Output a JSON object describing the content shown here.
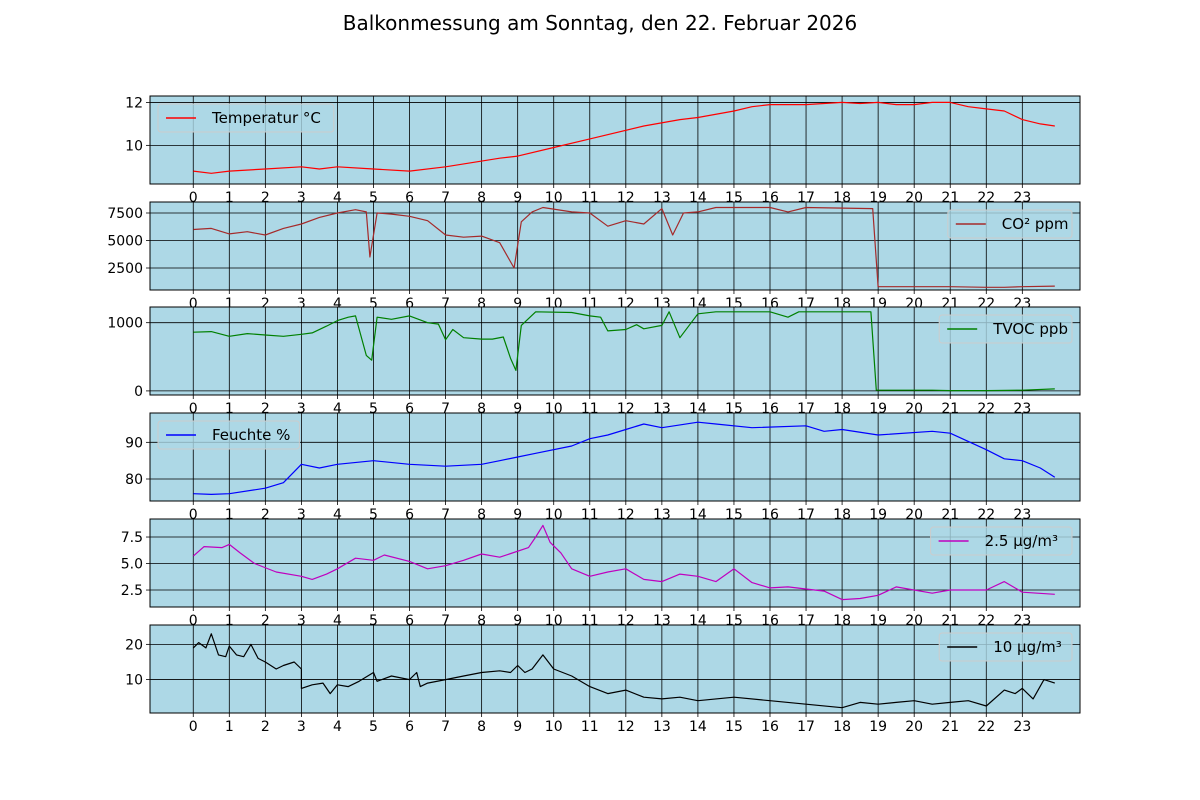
{
  "title": "Balkonmessung am Sonntag, den 22. Februar 2026",
  "colors": {
    "plot_background": "#add8e6",
    "grid": "#000000",
    "temperature": "#ff0000",
    "co2": "#a52a2a",
    "tvoc": "#008000",
    "humidity": "#0000ff",
    "pm25": "#bf00bf",
    "pm10": "#000000"
  },
  "chart_data": [
    {
      "type": "line",
      "series": [
        {
          "name": "Temperatur °C",
          "values": [
            8.8,
            8.7,
            8.8,
            8.9,
            9.0,
            8.9,
            9.0,
            8.9,
            8.8,
            9.0,
            9.4,
            9.5,
            9.9,
            10.3,
            10.9,
            11.2,
            11.3,
            11.6,
            11.8,
            11.9,
            11.9,
            12.0,
            11.95,
            12.0,
            11.9,
            11.9,
            12.0,
            12.0,
            11.8,
            11.7,
            11.6,
            11.2,
            11.0,
            10.9
          ]
        }
      ],
      "x": [
        0,
        0.5,
        1,
        2,
        3,
        3.5,
        4,
        5,
        6,
        7,
        8.5,
        9,
        10,
        11,
        12.5,
        13.5,
        14,
        15,
        15.5,
        16,
        17,
        18,
        18.5,
        19,
        19.5,
        20,
        20.5,
        21,
        21.5,
        22,
        22.5,
        23,
        23.5,
        23.9
      ],
      "legend": "upper left",
      "ylim": [
        8.2,
        12.3
      ],
      "yticks": [
        10,
        12
      ],
      "ytick_labels": [
        "10",
        "12"
      ]
    },
    {
      "type": "line",
      "series": [
        {
          "name": "CO² ppm",
          "values": [
            6000,
            6100,
            5600,
            5800,
            5500,
            6100,
            6500,
            7100,
            7500,
            7800,
            7600,
            3500,
            7500,
            7400,
            7200,
            6800,
            5500,
            5300,
            5400,
            4800,
            2500,
            6700,
            7600,
            8000,
            7600,
            7500,
            6300,
            6800,
            6500,
            7900,
            5500,
            7500,
            7600,
            8000,
            8000,
            7600,
            8000,
            7900,
            800,
            800,
            800,
            750,
            750,
            800,
            850
          ]
        }
      ],
      "x": [
        0,
        0.5,
        1,
        1.5,
        2,
        2.5,
        3,
        3.5,
        4,
        4.5,
        4.8,
        4.9,
        5.1,
        5.5,
        6,
        6.5,
        7,
        7.5,
        8,
        8.5,
        8.9,
        9.1,
        9.4,
        9.7,
        10.5,
        11,
        11.5,
        12,
        12.5,
        13,
        13.3,
        13.6,
        14,
        14.5,
        16,
        16.5,
        17,
        18.85,
        19.0,
        20,
        21,
        22,
        22.5,
        23,
        23.9
      ],
      "legend": "upper right",
      "ylim": [
        500,
        8500
      ],
      "yticks": [
        2500,
        5000,
        7500
      ],
      "ytick_labels": [
        "2500",
        "5000",
        "7500"
      ]
    },
    {
      "type": "line",
      "series": [
        {
          "name": "TVOC ppb",
          "values": [
            860,
            870,
            800,
            840,
            820,
            800,
            830,
            850,
            950,
            1030,
            1080,
            1100,
            520,
            450,
            1080,
            1050,
            1100,
            1000,
            980,
            750,
            900,
            780,
            760,
            760,
            790,
            480,
            300,
            960,
            1160,
            1150,
            1100,
            1080,
            880,
            900,
            970,
            910,
            960,
            1160,
            780,
            1130,
            1160,
            1160,
            1080,
            1160,
            1160,
            10,
            10,
            10,
            5,
            5,
            10,
            30
          ]
        }
      ],
      "x": [
        0,
        0.5,
        1,
        1.5,
        2,
        2.5,
        3,
        3.3,
        3.7,
        4,
        4.3,
        4.5,
        4.8,
        4.95,
        5.1,
        5.5,
        6,
        6.5,
        6.8,
        7,
        7.2,
        7.5,
        8,
        8.3,
        8.6,
        8.8,
        8.95,
        9.1,
        9.5,
        10.5,
        11,
        11.3,
        11.5,
        12,
        12.3,
        12.5,
        13,
        13.2,
        13.5,
        14,
        14.5,
        16,
        16.5,
        16.8,
        18.8,
        18.95,
        19.5,
        20.5,
        21,
        22,
        23,
        23.9
      ],
      "legend": "upper right",
      "ylim": [
        -60,
        1230
      ],
      "yticks": [
        0,
        1000
      ],
      "ytick_labels": [
        "0",
        "1000"
      ]
    },
    {
      "type": "line",
      "series": [
        {
          "name": "Feuchte %",
          "values": [
            76,
            75.8,
            76,
            77.5,
            79,
            82,
            84,
            83,
            84,
            85,
            84,
            83.5,
            84,
            85,
            86,
            87,
            89,
            91,
            92,
            93.5,
            95,
            94,
            95.5,
            95,
            94,
            94.5,
            93,
            93.5,
            92,
            93,
            92.5,
            88,
            85.5,
            85,
            83,
            80.5
          ]
        }
      ],
      "x": [
        0,
        0.5,
        1,
        2,
        2.5,
        2.8,
        3,
        3.5,
        4,
        5,
        6,
        7,
        8,
        8.5,
        9,
        9.5,
        10.5,
        11,
        11.5,
        12,
        12.5,
        13,
        14,
        14.5,
        15.5,
        17,
        17.5,
        18,
        19,
        20.5,
        21,
        22,
        22.5,
        23,
        23.5,
        23.9
      ],
      "legend": "upper left",
      "ylim": [
        74,
        98
      ],
      "yticks": [
        80,
        90
      ],
      "ytick_labels": [
        "80",
        "90"
      ]
    },
    {
      "type": "line",
      "series": [
        {
          "name": "2.5 µg/m³",
          "values": [
            5.7,
            6.6,
            6.5,
            6.8,
            6,
            5,
            4.2,
            3.8,
            3.5,
            4,
            4.5,
            5.5,
            5.3,
            5.8,
            5.2,
            4.5,
            4.8,
            5.3,
            5.9,
            5.6,
            6.5,
            7.5,
            8.6,
            7,
            6,
            4.5,
            3.8,
            4.2,
            4.5,
            3.5,
            3.3,
            4,
            3.8,
            3.3,
            4.5,
            3.2,
            2.7,
            2.8,
            2.6,
            2.4,
            1.6,
            1.7,
            2.0,
            2.8,
            2.2,
            2.5,
            2.5,
            3.3,
            2.3,
            2.1
          ]
        }
      ],
      "x": [
        0,
        0.3,
        0.8,
        1,
        1.3,
        1.7,
        2.3,
        3,
        3.3,
        3.7,
        4,
        4.5,
        5,
        5.3,
        6,
        6.5,
        7,
        7.5,
        8,
        8.5,
        9.3,
        9.5,
        9.7,
        9.9,
        10.2,
        10.5,
        11,
        11.5,
        12,
        12.5,
        13,
        13.5,
        14,
        14.5,
        15,
        15.5,
        16,
        16.5,
        17,
        17.5,
        18,
        18.5,
        19,
        19.5,
        20.5,
        21,
        22,
        22.5,
        23,
        23.9
      ],
      "legend": "upper right",
      "ylim": [
        0.9,
        9.2
      ],
      "yticks": [
        2.5,
        5.0,
        7.5
      ],
      "ytick_labels": [
        "2.5",
        "5.0",
        "7.5"
      ]
    },
    {
      "type": "line",
      "series": [
        {
          "name": "10 µg/m³",
          "values": [
            19,
            20.5,
            19,
            23,
            17,
            16.5,
            19.5,
            17,
            16.5,
            20,
            16,
            15,
            13,
            14,
            15,
            13,
            7.5,
            8.5,
            9,
            6,
            8.5,
            8,
            9.5,
            12,
            9.5,
            11,
            10,
            12,
            8,
            9,
            10,
            11,
            12,
            12.5,
            12,
            14,
            12,
            13,
            17,
            13,
            11,
            8,
            6,
            7,
            5,
            4.5,
            5,
            4,
            5,
            4,
            3,
            2,
            3.5,
            3,
            3.5,
            4,
            3,
            3.5,
            4,
            2.5,
            7,
            6,
            7.5,
            4.5,
            10,
            9
          ]
        }
      ],
      "x": [
        0,
        0.15,
        0.35,
        0.5,
        0.7,
        0.9,
        1.0,
        1.2,
        1.4,
        1.6,
        1.8,
        2,
        2.3,
        2.5,
        2.8,
        3,
        3.0,
        3.3,
        3.6,
        3.8,
        4,
        4.3,
        4.6,
        5,
        5.1,
        5.5,
        6,
        6.2,
        6.3,
        6.5,
        7,
        7.5,
        8,
        8.5,
        8.8,
        9,
        9.2,
        9.4,
        9.7,
        10,
        10.5,
        11,
        11.5,
        12,
        12.5,
        13,
        13.5,
        14,
        15,
        16,
        17,
        18,
        18.5,
        19,
        19.5,
        20,
        20.5,
        21,
        21.5,
        22,
        22.5,
        22.8,
        23,
        23.3,
        23.6,
        23.9
      ],
      "legend": "upper right",
      "ylim": [
        0.5,
        25.5
      ],
      "yticks": [
        10,
        20
      ],
      "ytick_labels": [
        "10",
        "20"
      ]
    }
  ],
  "x_axis": {
    "xlim": [
      -1.2,
      24.6
    ],
    "ticks": [
      0,
      1,
      2,
      3,
      4,
      5,
      6,
      7,
      8,
      9,
      10,
      11,
      12,
      13,
      14,
      15,
      16,
      17,
      18,
      19,
      20,
      21,
      22,
      23
    ],
    "tick_labels": [
      "0",
      "1",
      "2",
      "3",
      "4",
      "5",
      "6",
      "7",
      "8",
      "9",
      "10",
      "11",
      "12",
      "13",
      "14",
      "15",
      "16",
      "17",
      "18",
      "19",
      "20",
      "21",
      "22",
      "23"
    ]
  }
}
